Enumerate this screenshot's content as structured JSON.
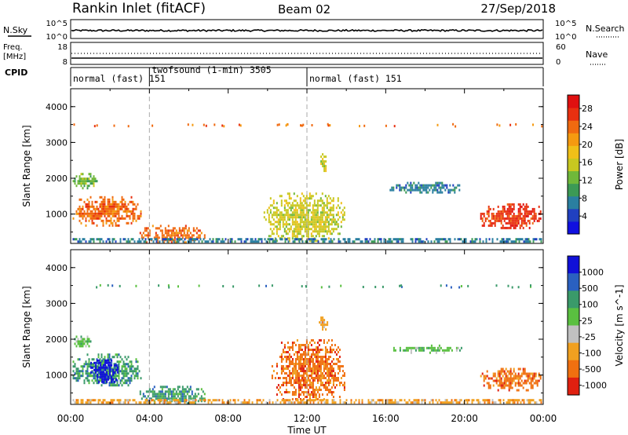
{
  "header": {
    "station": "Rankin Inlet (fitACF)",
    "beam": "Beam 02",
    "date": "27/Sep/2018"
  },
  "strips": {
    "nsky_label": "N.Sky",
    "nsky_ticks": [
      "10^5",
      "10^0"
    ],
    "nsearch_label": "N.Search",
    "nsearch_ticks": [
      "10^5",
      "10^0"
    ],
    "freq_label": "Freq.",
    "freq_unit": "[MHz]",
    "freq_ticks": [
      "18",
      "8"
    ],
    "nave_label": "Nave",
    "nave_ticks": [
      "60",
      "0"
    ],
    "cpid_label": "CPID"
  },
  "cpid_segments": [
    {
      "label": "normal (fast) 151",
      "start": 0,
      "end": 4
    },
    {
      "label": "twofsound (1-min) 3505",
      "start": 4,
      "end": 12
    },
    {
      "label": "normal (fast) 151",
      "start": 12,
      "end": 24
    }
  ],
  "time_axis": {
    "label": "Time UT",
    "ticks": [
      "00:00",
      "04:00",
      "08:00",
      "12:00",
      "16:00",
      "20:00",
      "00:00"
    ]
  },
  "chart_data": [
    {
      "type": "heatmap",
      "title": "",
      "xlabel": "",
      "ylabel": "Slant Range [km]",
      "xlim": [
        0,
        24
      ],
      "ylim": [
        180,
        4500
      ],
      "yticks": [
        "1000",
        "2000",
        "3000",
        "4000"
      ],
      "colorbar": {
        "label": "Power [dB]",
        "ticks": [
          "4",
          "8",
          "12",
          "16",
          "20",
          "24",
          "28"
        ],
        "range": [
          0,
          31
        ],
        "colors": [
          "#1010e0",
          "#2040c0",
          "#2a7fa0",
          "#3c9a55",
          "#70b83a",
          "#c8c820",
          "#f0c018",
          "#f59a10",
          "#f06a10",
          "#e83010",
          "#e01010"
        ]
      },
      "regions": [
        {
          "t": [
            0.1,
            3.6
          ],
          "r": [
            700,
            1500
          ],
          "value": 24
        },
        {
          "t": [
            0.1,
            1.3
          ],
          "r": [
            1750,
            2150
          ],
          "value": 12
        },
        {
          "t": [
            3.5,
            6.8
          ],
          "r": [
            200,
            700
          ],
          "value": 24
        },
        {
          "t": [
            9.8,
            13.9
          ],
          "r": [
            250,
            1600
          ],
          "value": 16
        },
        {
          "t": [
            12.6,
            13.0
          ],
          "r": [
            2200,
            2700
          ],
          "value": 16
        },
        {
          "t": [
            16.2,
            19.8
          ],
          "r": [
            1600,
            1900
          ],
          "value": 8
        },
        {
          "t": [
            20.8,
            23.9
          ],
          "r": [
            600,
            1300
          ],
          "value": 26
        },
        {
          "t": [
            0.1,
            23.9
          ],
          "r": [
            250,
            330
          ],
          "value": 8
        }
      ]
    },
    {
      "type": "heatmap",
      "title": "",
      "xlabel": "Time UT",
      "ylabel": "Slant Range [km]",
      "xlim": [
        0,
        24
      ],
      "ylim": [
        180,
        4500
      ],
      "yticks": [
        "1000",
        "2000",
        "3000",
        "4000"
      ],
      "colorbar": {
        "label": "Velocity [m s^-1]",
        "ticks": [
          "1000",
          "500",
          "100",
          "25",
          "-25",
          "-100",
          "-500",
          "-1000"
        ],
        "colors": [
          "#1010d8",
          "#2a60c0",
          "#3a9a6a",
          "#5ac040",
          "#c0c0c0",
          "#f0a020",
          "#f07010",
          "#e02010"
        ]
      },
      "regions": [
        {
          "t": [
            0.1,
            3.6
          ],
          "r": [
            700,
            1600
          ],
          "value": 100
        },
        {
          "t": [
            1.0,
            2.4
          ],
          "r": [
            800,
            1500
          ],
          "value": 1000
        },
        {
          "t": [
            0.1,
            1.0
          ],
          "r": [
            1800,
            2100
          ],
          "value": 25
        },
        {
          "t": [
            3.5,
            6.8
          ],
          "r": [
            200,
            700
          ],
          "value": 100
        },
        {
          "t": [
            10.2,
            13.9
          ],
          "r": [
            300,
            2000
          ],
          "value": -500
        },
        {
          "t": [
            12.6,
            13.0
          ],
          "r": [
            2300,
            2700
          ],
          "value": -100
        },
        {
          "t": [
            16.3,
            20.0
          ],
          "r": [
            1650,
            1850
          ],
          "value": 25
        },
        {
          "t": [
            20.8,
            23.9
          ],
          "r": [
            600,
            1200
          ],
          "value": -500
        },
        {
          "t": [
            0.1,
            23.9
          ],
          "r": [
            250,
            330
          ],
          "value": -100
        }
      ]
    }
  ]
}
